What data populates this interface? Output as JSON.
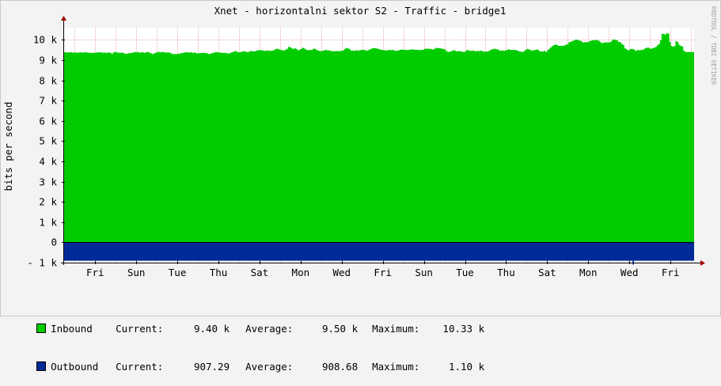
{
  "chart_data": {
    "type": "area",
    "title": "Xnet - horizontalni sektor S2 - Traffic - bridge1",
    "ylabel": "bits per second",
    "watermark": "RRDTOOL / TOBI OETIKER",
    "ylim": [
      -1000,
      10600
    ],
    "y_ticks": [
      {
        "value": -1000,
        "label": "- 1 k"
      },
      {
        "value": 0,
        "label": "0"
      },
      {
        "value": 1000,
        "label": "1 k"
      },
      {
        "value": 2000,
        "label": "2 k"
      },
      {
        "value": 3000,
        "label": "3 k"
      },
      {
        "value": 4000,
        "label": "4 k"
      },
      {
        "value": 5000,
        "label": "5 k"
      },
      {
        "value": 6000,
        "label": "6 k"
      },
      {
        "value": 7000,
        "label": "7 k"
      },
      {
        "value": 8000,
        "label": "8 k"
      },
      {
        "value": 9000,
        "label": "9 k"
      },
      {
        "value": 10000,
        "label": "10 k"
      }
    ],
    "x_ticks": [
      "Fri",
      "Sun",
      "Tue",
      "Thu",
      "Sat",
      "Mon",
      "Wed",
      "Fri",
      "Sun",
      "Tue",
      "Thu",
      "Sat",
      "Mon",
      "Wed",
      "Fri"
    ],
    "x_ticks_note_order": "labels at evenly spaced day boundaries, every other day",
    "grid": true,
    "colors": {
      "inbound": "#00cc00",
      "outbound": "#002a97",
      "grid": "#e8b0b0",
      "axis": "#000000",
      "arrow": "#a00000"
    },
    "series": [
      {
        "name": "Inbound",
        "color": "#00cc00",
        "values": [
          9380,
          9390,
          9370,
          9380,
          9390,
          9380,
          9360,
          9380,
          9370,
          9360,
          9380,
          9380,
          9370,
          9380,
          9390,
          9370,
          9360,
          9370,
          9350,
          9360,
          9360,
          9370,
          9390,
          9380,
          9380,
          9360,
          9380,
          9350,
          9370,
          9380,
          9360,
          9300,
          9380,
          9400,
          9380,
          9370,
          9360,
          9360,
          9360,
          9330,
          9300,
          9330,
          9340,
          9350,
          9360,
          9380,
          9400,
          9380,
          9400,
          9360,
          9390,
          9380,
          9360,
          9380,
          9400,
          9380,
          9340,
          9300,
          9320,
          9360,
          9380,
          9410,
          9380,
          9400,
          9390,
          9390,
          9360,
          9390,
          9370,
          9340,
          9290,
          9300,
          9300,
          9300,
          9310,
          9330,
          9340,
          9360,
          9380,
          9390,
          9380,
          9370,
          9390,
          9360,
          9370,
          9360,
          9330,
          9340,
          9350,
          9350,
          9360,
          9350,
          9340,
          9320,
          9300,
          9330,
          9350,
          9370,
          9400,
          9380,
          9380,
          9360,
          9360,
          9350,
          9360,
          9340,
          9320,
          9340,
          9380,
          9400,
          9430,
          9450,
          9400,
          9380,
          9400,
          9420,
          9440,
          9420,
          9400,
          9400,
          9440,
          9450,
          9430,
          9430,
          9460,
          9470,
          9500,
          9480,
          9480,
          9460,
          9460,
          9480,
          9460,
          9460,
          9460,
          9470,
          9520,
          9550,
          9560,
          9520,
          9500,
          9480,
          9470,
          9510,
          9560,
          9650,
          9640,
          9580,
          9550,
          9590,
          9550,
          9480,
          9510,
          9550,
          9610,
          9580,
          9520,
          9490,
          9490,
          9500,
          9500,
          9560,
          9560,
          9500,
          9470,
          9450,
          9450,
          9460,
          9480,
          9500,
          9480,
          9480,
          9450,
          9450,
          9440,
          9440,
          9450,
          9440,
          9450,
          9460,
          9470,
          9530,
          9600,
          9580,
          9560,
          9480,
          9470,
          9460,
          9470,
          9490,
          9460,
          9490,
          9500,
          9510,
          9500,
          9460,
          9480,
          9520,
          9540,
          9590,
          9590,
          9590,
          9570,
          9550,
          9510,
          9510,
          9490,
          9480,
          9470,
          9490,
          9500,
          9490,
          9500,
          9480,
          9460,
          9460,
          9480,
          9510,
          9520,
          9510,
          9500,
          9500,
          9500,
          9510,
          9520,
          9530,
          9510,
          9510,
          9500,
          9500,
          9490,
          9500,
          9520,
          9560,
          9560,
          9560,
          9560,
          9540,
          9520,
          9550,
          9600,
          9600,
          9590,
          9580,
          9560,
          9550,
          9510,
          9430,
          9400,
          9420,
          9440,
          9480,
          9480,
          9440,
          9430,
          9450,
          9430,
          9410,
          9400,
          9430,
          9500,
          9480,
          9460,
          9460,
          9470,
          9450,
          9440,
          9460,
          9440,
          9470,
          9440,
          9420,
          9420,
          9420,
          9450,
          9490,
          9520,
          9550,
          9560,
          9540,
          9530,
          9470,
          9470,
          9470,
          9460,
          9480,
          9500,
          9540,
          9500,
          9500,
          9500,
          9500,
          9480,
          9460,
          9420,
          9420,
          9400,
          9450,
          9510,
          9550,
          9530,
          9500,
          9460,
          9490,
          9500,
          9520,
          9510,
          9430,
          9430,
          9420,
          9460,
          9400,
          9480,
          9550,
          9620,
          9680,
          9740,
          9760,
          9760,
          9700,
          9700,
          9710,
          9700,
          9720,
          9760,
          9790,
          9880,
          9900,
          9940,
          9960,
          10010,
          10010,
          9970,
          9960,
          9920,
          9870,
          9880,
          9880,
          9880,
          9930,
          9950,
          9980,
          9970,
          10000,
          9970,
          9960,
          9900,
          9840,
          9860,
          9870,
          9880,
          9870,
          9880,
          9910,
          10000,
          10020,
          9990,
          9970,
          9890,
          9880,
          9800,
          9740,
          9580,
          9530,
          9480,
          9520,
          9550,
          9550,
          9510,
          9450,
          9500,
          9480,
          9490,
          9510,
          9520,
          9580,
          9610,
          9620,
          9570,
          9560,
          9600,
          9610,
          9660,
          9730,
          9800,
          9980,
          10290,
          10290,
          10260,
          10330,
          10300,
          9900,
          9700,
          9660,
          9700,
          9940,
          9880,
          9750,
          9700,
          9670,
          9470,
          9410,
          9400,
          9400,
          9400,
          9400,
          9400
        ]
      },
      {
        "name": "Outbound",
        "color": "#002a97",
        "values": [
          -908,
          -908,
          -909,
          -908,
          -907,
          -908,
          -909,
          -908,
          -907,
          -909,
          -908,
          -908,
          -907,
          -908,
          -909,
          -908,
          -907,
          -908,
          -909,
          -908,
          -907,
          -908,
          -908,
          -908,
          -909,
          -908,
          -907,
          -908,
          -909,
          -908,
          -908,
          -908,
          -907,
          -908,
          -909,
          -908,
          -907,
          -908,
          -908,
          -908,
          -907,
          -908,
          -909,
          -908,
          -908,
          -908,
          -907,
          -908,
          -909,
          -908,
          -908,
          -908,
          -907,
          -908,
          -909,
          -908,
          -908,
          -908,
          -907,
          -908,
          -909,
          -908,
          -908,
          -908,
          -907,
          -908,
          -909,
          -908,
          -908,
          -908,
          -907,
          -908,
          -909,
          -908,
          -908,
          -908,
          -907,
          -908,
          -909,
          -908,
          -908,
          -908,
          -907,
          -908,
          -909,
          -908,
          -908,
          -908,
          -907,
          -908,
          -909,
          -908,
          -908,
          -908,
          -907,
          -908,
          -909,
          -908,
          -908,
          -908,
          -907,
          -908,
          -909,
          -908,
          -908,
          -908,
          -907,
          -908,
          -909,
          -908,
          -908,
          -908,
          -907,
          -908,
          -909,
          -908,
          -908,
          -908,
          -907,
          -908,
          -909,
          -908,
          -908,
          -908,
          -907,
          -908,
          -909,
          -908,
          -908,
          -908,
          -907,
          -908,
          -909,
          -908,
          -908,
          -908,
          -907,
          -908,
          -909,
          -908,
          -908,
          -908,
          -907,
          -908,
          -909,
          -908,
          -908,
          -908,
          -907,
          -908,
          -909,
          -908,
          -908,
          -908,
          -907,
          -908,
          -909,
          -908,
          -908,
          -908,
          -907,
          -908,
          -909,
          -908,
          -908,
          -908,
          -907,
          -908,
          -909,
          -908,
          -908,
          -908,
          -907,
          -908,
          -909,
          -908,
          -908,
          -908,
          -907,
          -908,
          -909,
          -908,
          -908,
          -908,
          -907,
          -908,
          -909,
          -908,
          -908,
          -908,
          -907,
          -908,
          -909,
          -908,
          -908,
          -908,
          -907,
          -908,
          -909,
          -908,
          -908,
          -908,
          -907,
          -908,
          -909,
          -908,
          -908,
          -908,
          -907,
          -908,
          -909,
          -908,
          -908,
          -908,
          -907,
          -908,
          -909,
          -908,
          -908,
          -908,
          -907,
          -908,
          -909,
          -908,
          -908,
          -908,
          -907,
          -908,
          -909,
          -908,
          -908,
          -908,
          -907,
          -908,
          -909,
          -908,
          -908,
          -908,
          -907,
          -908,
          -909,
          -908,
          -908,
          -908,
          -907,
          -908,
          -909,
          -908,
          -908,
          -908,
          -907,
          -908,
          -909,
          -908,
          -908,
          -908,
          -907,
          -908,
          -909,
          -908,
          -908,
          -908,
          -907,
          -908,
          -909,
          -908,
          -908,
          -908,
          -907,
          -908,
          -909,
          -908,
          -908,
          -908,
          -907,
          -908,
          -909,
          -908,
          -908,
          -908,
          -907,
          -908,
          -909,
          -908,
          -908,
          -908,
          -907,
          -908,
          -909,
          -908,
          -908,
          -908,
          -907,
          -908,
          -909,
          -908,
          -908,
          -908,
          -907,
          -908,
          -909,
          -908,
          -908,
          -908,
          -907,
          -908,
          -909,
          -908,
          -908,
          -908,
          -907,
          -908,
          -909,
          -908,
          -908,
          -908,
          -907,
          -908,
          -909,
          -908,
          -908,
          -908,
          -907,
          -908,
          -909,
          -908,
          -908,
          -908,
          -907,
          -908,
          -909,
          -908,
          -908,
          -908,
          -907,
          -908,
          -909,
          -908,
          -908,
          -908,
          -907,
          -908,
          -909,
          -908,
          -908,
          -908,
          -907,
          -908,
          -909,
          -908,
          -908,
          -908,
          -907,
          -908,
          -909,
          -908,
          -908,
          -908,
          -907,
          -908,
          -909,
          -908,
          -908,
          -908,
          -907,
          -908,
          -909,
          -908,
          -908,
          -908,
          -907,
          -908,
          -909,
          -908,
          -908,
          -908,
          -907,
          -908,
          -909,
          -908,
          -908,
          -908,
          -907,
          -908,
          -909,
          -908,
          -908,
          -908,
          -907,
          -908,
          -909,
          -908,
          -908,
          -908,
          -907,
          -908,
          -909,
          -908,
          -908,
          -908,
          -907,
          -908,
          -909,
          -908,
          -908,
          -908,
          -907,
          -1100,
          -908,
          -908,
          -907,
          -908,
          -909,
          -908,
          -908,
          -908,
          -907,
          -908,
          -909,
          -908,
          -908,
          -908,
          -907,
          -908,
          -909,
          -908,
          -908,
          -908,
          -907,
          -908,
          -909,
          -908,
          -908,
          -908,
          -907,
          -908,
          -909,
          -908,
          -908,
          -908,
          -907,
          -908,
          -909,
          -908,
          -908,
          -908,
          -907,
          -908,
          -909,
          -908,
          -907
        ]
      }
    ],
    "legend": [
      {
        "name": "Inbound",
        "color": "#00cc00",
        "current_label": "Current:",
        "current": "9.40 k",
        "average_label": "Average:",
        "average": "9.50 k",
        "maximum_label": "Maximum:",
        "maximum": "10.33 k"
      },
      {
        "name": "Outbound",
        "color": "#002a97",
        "current_label": "Current:",
        "current": "907.29",
        "average_label": "Average:",
        "average": "908.68",
        "maximum_label": "Maximum:",
        "maximum": "1.10 k"
      }
    ]
  }
}
